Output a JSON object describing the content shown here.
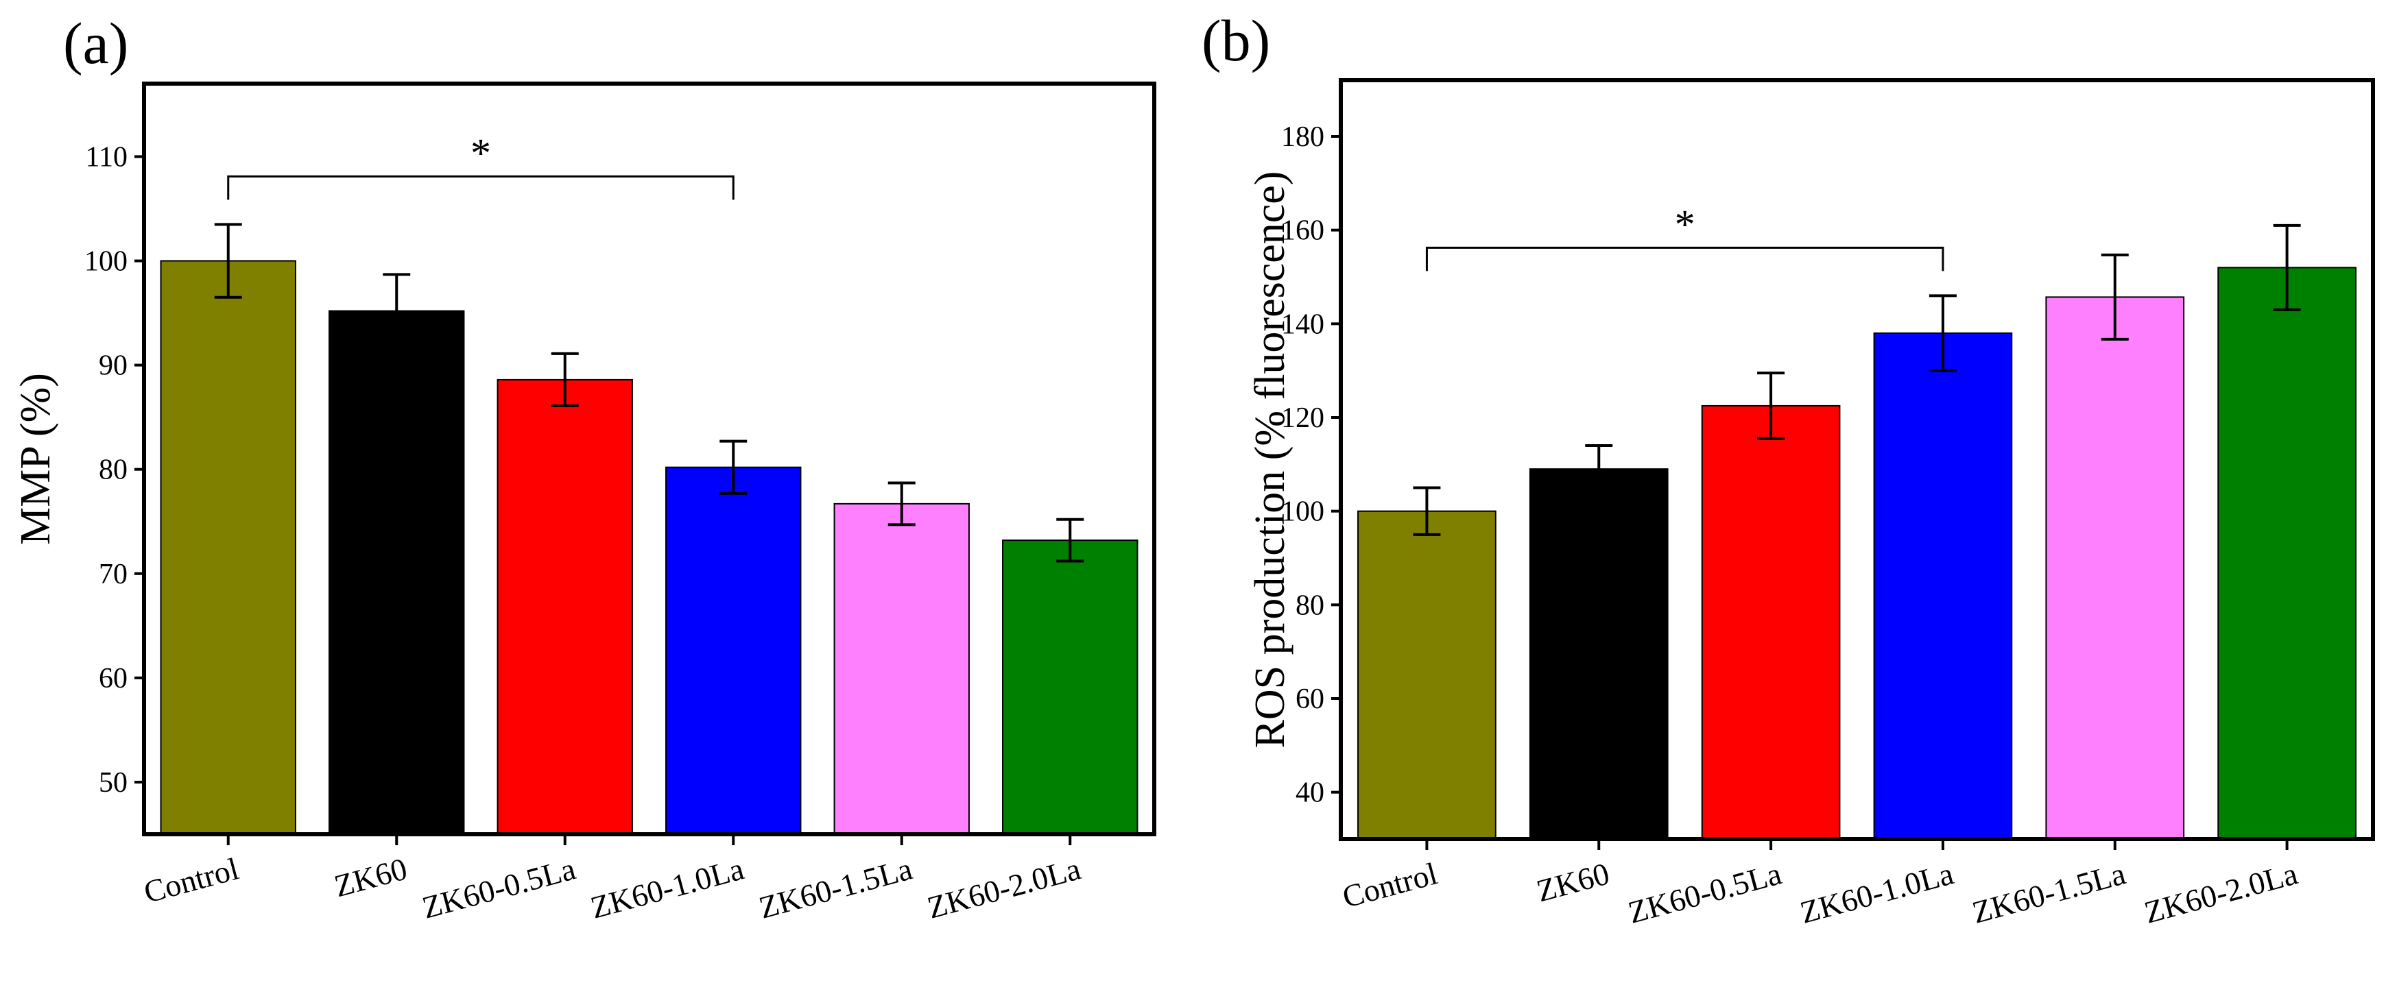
{
  "chart_data": [
    {
      "type": "bar",
      "panel_label": "(a)",
      "ylabel": "MMP (%)",
      "xlabel": "",
      "ylim": [
        45,
        117
      ],
      "yticks": [
        50,
        60,
        70,
        80,
        90,
        100,
        110
      ],
      "grid": false,
      "categories": [
        "Control",
        "ZK60",
        "ZK60-0.5La",
        "ZK60-1.0La",
        "ZK60-1.5La",
        "ZK60-2.0La"
      ],
      "values": [
        100,
        95.2,
        88.6,
        80.2,
        76.7,
        73.2
      ],
      "errors": [
        3.5,
        3.5,
        2.5,
        2.5,
        2.0,
        2.0
      ],
      "colors": [
        "#808000",
        "#000000",
        "#ff0000",
        "#0000ff",
        "#ff80ff",
        "#008000"
      ],
      "significance": {
        "from": 0,
        "to": 3,
        "label": "*"
      }
    },
    {
      "type": "bar",
      "panel_label": "(b)",
      "ylabel": "ROS production (% fluorescence)",
      "xlabel": "",
      "ylim": [
        30,
        192
      ],
      "yticks": [
        40,
        60,
        80,
        100,
        120,
        140,
        160,
        180
      ],
      "grid": false,
      "categories": [
        "Control",
        "ZK60",
        "ZK60-0.5La",
        "ZK60-1.0La",
        "ZK60-1.5La",
        "ZK60-2.0La"
      ],
      "values": [
        100,
        109,
        122.5,
        138,
        145.7,
        152
      ],
      "errors": [
        5,
        5,
        7,
        8,
        9,
        9
      ],
      "colors": [
        "#808000",
        "#000000",
        "#ff0000",
        "#0000ff",
        "#ff80ff",
        "#008000"
      ],
      "significance": {
        "from": 0,
        "to": 3,
        "label": "*"
      }
    }
  ]
}
